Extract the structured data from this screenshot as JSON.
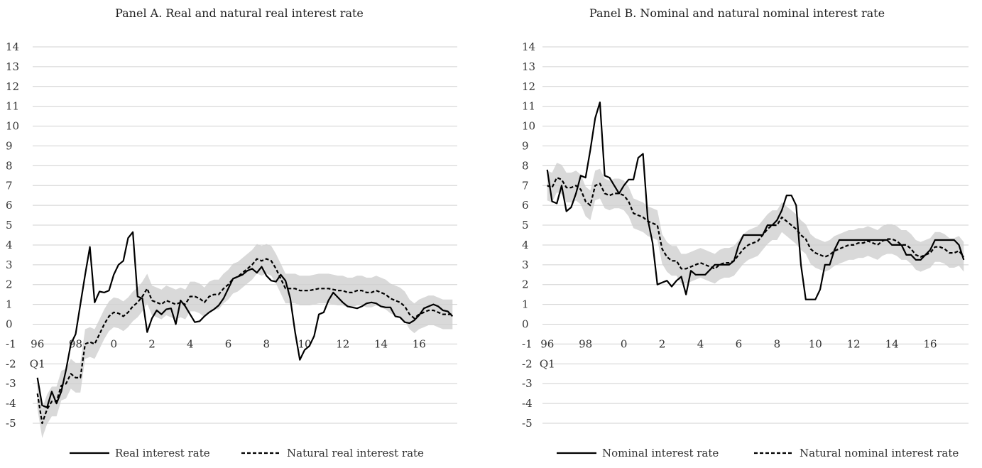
{
  "chart_data": [
    {
      "type": "line",
      "title": "Panel A. Real and natural real interest rate",
      "ylim": [
        -5,
        14
      ],
      "yticks": [
        14,
        13,
        12,
        11,
        10,
        9,
        8,
        7,
        6,
        5,
        4,
        3,
        2,
        1,
        0,
        -1,
        -2,
        -3,
        -4,
        -5
      ],
      "xticks": [
        {
          "label": "96",
          "x": 1996.0
        },
        {
          "label": "98",
          "x": 1998.0
        },
        {
          "label": "0",
          "x": 2000.0
        },
        {
          "label": "2",
          "x": 2002.0
        },
        {
          "label": "4",
          "x": 2004.0
        },
        {
          "label": "6",
          "x": 2006.0
        },
        {
          "label": "8",
          "x": 2008.0
        },
        {
          "label": "10",
          "x": 2010.0
        },
        {
          "label": "12",
          "x": 2012.0
        },
        {
          "label": "14",
          "x": 2014.0
        },
        {
          "label": "16",
          "x": 2016.0
        }
      ],
      "xsublabel": "Q1",
      "xlim": [
        1995.75,
        2018.0
      ],
      "grid": "horizontal",
      "legend": "bottom",
      "series": [
        {
          "name": "Real interest rate",
          "style": "solid",
          "color": "#000000",
          "x": [
            1996.0,
            1996.25,
            1996.5,
            1996.75,
            1997.0,
            1997.25,
            1997.5,
            1997.75,
            1998.0,
            1998.25,
            1998.5,
            1998.75,
            1999.0,
            1999.25,
            1999.5,
            1999.75,
            2000.0,
            2000.25,
            2000.5,
            2000.75,
            2001.0,
            2001.25,
            2001.5,
            2001.75,
            2002.0,
            2002.25,
            2002.5,
            2002.75,
            2003.0,
            2003.25,
            2003.5,
            2003.75,
            2004.0,
            2004.25,
            2004.5,
            2004.75,
            2005.0,
            2005.25,
            2005.5,
            2005.75,
            2006.0,
            2006.25,
            2006.5,
            2006.75,
            2007.0,
            2007.25,
            2007.5,
            2007.75,
            2008.0,
            2008.25,
            2008.5,
            2008.75,
            2009.0,
            2009.25,
            2009.5,
            2009.75,
            2010.0,
            2010.25,
            2010.5,
            2010.75,
            2011.0,
            2011.25,
            2011.5,
            2011.75,
            2012.0,
            2012.25,
            2012.5,
            2012.75,
            2013.0,
            2013.25,
            2013.5,
            2013.75,
            2014.0,
            2014.25,
            2014.5,
            2014.75,
            2015.0,
            2015.25,
            2015.5,
            2015.75,
            2016.0,
            2016.25,
            2016.5,
            2016.75,
            2017.0,
            2017.25,
            2017.5,
            2017.75
          ],
          "y": [
            -2.7,
            -4.1,
            -4.2,
            -3.4,
            -4.0,
            -3.4,
            -2.3,
            -1.0,
            -0.5,
            1.0,
            2.5,
            3.9,
            1.1,
            1.65,
            1.6,
            1.7,
            2.5,
            3.0,
            3.2,
            4.35,
            4.65,
            1.4,
            1.3,
            -0.4,
            0.3,
            0.7,
            0.5,
            0.75,
            0.8,
            0.0,
            1.2,
            0.9,
            0.5,
            0.1,
            0.15,
            0.4,
            0.6,
            0.75,
            0.95,
            1.3,
            1.8,
            2.3,
            2.4,
            2.5,
            2.7,
            2.8,
            2.6,
            2.9,
            2.45,
            2.2,
            2.15,
            2.5,
            2.2,
            1.3,
            -0.4,
            -1.8,
            -1.3,
            -1.1,
            -0.6,
            0.5,
            0.6,
            1.2,
            1.6,
            1.35,
            1.1,
            0.9,
            0.85,
            0.8,
            0.9,
            1.05,
            1.1,
            1.05,
            0.9,
            0.85,
            0.85,
            0.4,
            0.35,
            0.1,
            0.05,
            0.2,
            0.45,
            0.8,
            0.9,
            1.0,
            0.9,
            0.7,
            0.65,
            0.4
          ]
        },
        {
          "name": "Natural real interest rate",
          "style": "dashed",
          "color": "#000000",
          "x": [
            1996.0,
            1996.25,
            1996.5,
            1996.75,
            1997.0,
            1997.25,
            1997.5,
            1997.75,
            1998.0,
            1998.25,
            1998.5,
            1998.75,
            1999.0,
            1999.25,
            1999.5,
            1999.75,
            2000.0,
            2000.25,
            2000.5,
            2000.75,
            2001.0,
            2001.25,
            2001.5,
            2001.75,
            2002.0,
            2002.25,
            2002.5,
            2002.75,
            2003.0,
            2003.25,
            2003.5,
            2003.75,
            2004.0,
            2004.25,
            2004.5,
            2004.75,
            2005.0,
            2005.25,
            2005.5,
            2005.75,
            2006.0,
            2006.25,
            2006.5,
            2006.75,
            2007.0,
            2007.25,
            2007.5,
            2007.75,
            2008.0,
            2008.25,
            2008.5,
            2008.75,
            2009.0,
            2009.25,
            2009.5,
            2009.75,
            2010.0,
            2010.25,
            2010.5,
            2010.75,
            2011.0,
            2011.25,
            2011.5,
            2011.75,
            2012.0,
            2012.25,
            2012.5,
            2012.75,
            2013.0,
            2013.25,
            2013.5,
            2013.75,
            2014.0,
            2014.25,
            2014.5,
            2014.75,
            2015.0,
            2015.25,
            2015.5,
            2015.75,
            2016.0,
            2016.25,
            2016.5,
            2016.75,
            2017.0,
            2017.25,
            2017.5,
            2017.75
          ],
          "y": [
            -3.5,
            -5.0,
            -4.3,
            -3.9,
            -3.9,
            -3.1,
            -3.0,
            -2.5,
            -2.7,
            -2.7,
            -1.0,
            -0.9,
            -1.0,
            -0.5,
            0.0,
            0.4,
            0.6,
            0.55,
            0.4,
            0.6,
            0.9,
            1.1,
            1.4,
            1.8,
            1.2,
            1.1,
            1.0,
            1.2,
            1.1,
            1.0,
            1.1,
            1.0,
            1.4,
            1.4,
            1.3,
            1.1,
            1.4,
            1.5,
            1.5,
            1.8,
            2.0,
            2.3,
            2.4,
            2.6,
            2.8,
            3.0,
            3.3,
            3.2,
            3.3,
            3.2,
            2.8,
            2.3,
            1.8,
            1.8,
            1.8,
            1.7,
            1.7,
            1.7,
            1.75,
            1.8,
            1.8,
            1.8,
            1.75,
            1.7,
            1.7,
            1.6,
            1.6,
            1.7,
            1.7,
            1.6,
            1.6,
            1.7,
            1.6,
            1.5,
            1.3,
            1.2,
            1.1,
            0.9,
            0.5,
            0.3,
            0.5,
            0.6,
            0.7,
            0.7,
            0.6,
            0.5,
            0.5,
            0.5
          ]
        }
      ],
      "band_fill": "#d9d9d9"
    },
    {
      "type": "line",
      "title": "Panel B. Nominal and natural nominal interest rate",
      "ylim": [
        -5,
        14
      ],
      "yticks": [
        14,
        13,
        12,
        11,
        10,
        9,
        8,
        7,
        6,
        5,
        4,
        3,
        2,
        1,
        0,
        -1,
        -2,
        -3,
        -4,
        -5
      ],
      "xticks": [
        {
          "label": "96",
          "x": 1996.0
        },
        {
          "label": "98",
          "x": 1998.0
        },
        {
          "label": "0",
          "x": 2000.0
        },
        {
          "label": "2",
          "x": 2002.0
        },
        {
          "label": "4",
          "x": 2004.0
        },
        {
          "label": "6",
          "x": 2006.0
        },
        {
          "label": "8",
          "x": 2008.0
        },
        {
          "label": "10",
          "x": 2010.0
        },
        {
          "label": "12",
          "x": 2012.0
        },
        {
          "label": "14",
          "x": 2014.0
        },
        {
          "label": "16",
          "x": 2016.0
        }
      ],
      "xsublabel": "Q1",
      "xlim": [
        1995.75,
        2018.0
      ],
      "grid": "horizontal",
      "legend": "bottom",
      "series": [
        {
          "name": "Nominal interest rate",
          "style": "solid",
          "color": "#000000",
          "x": [
            1996.0,
            1996.25,
            1996.5,
            1996.75,
            1997.0,
            1997.25,
            1997.5,
            1997.75,
            1998.0,
            1998.25,
            1998.5,
            1998.75,
            1999.0,
            1999.25,
            1999.5,
            1999.75,
            2000.0,
            2000.25,
            2000.5,
            2000.75,
            2001.0,
            2001.25,
            2001.5,
            2001.75,
            2002.0,
            2002.25,
            2002.5,
            2002.75,
            2003.0,
            2003.25,
            2003.5,
            2003.75,
            2004.0,
            2004.25,
            2004.5,
            2004.75,
            2005.0,
            2005.25,
            2005.5,
            2005.75,
            2006.0,
            2006.25,
            2006.5,
            2006.75,
            2007.0,
            2007.25,
            2007.5,
            2007.75,
            2008.0,
            2008.25,
            2008.5,
            2008.75,
            2009.0,
            2009.25,
            2009.5,
            2009.75,
            2010.0,
            2010.25,
            2010.5,
            2010.75,
            2011.0,
            2011.25,
            2011.5,
            2011.75,
            2012.0,
            2012.25,
            2012.5,
            2012.75,
            2013.0,
            2013.25,
            2013.5,
            2013.75,
            2014.0,
            2014.25,
            2014.5,
            2014.75,
            2015.0,
            2015.25,
            2015.5,
            2015.75,
            2016.0,
            2016.25,
            2016.5,
            2016.75,
            2017.0,
            2017.25,
            2017.5,
            2017.75
          ],
          "y": [
            7.8,
            6.2,
            6.1,
            7.0,
            5.7,
            5.9,
            6.6,
            7.5,
            7.4,
            8.8,
            10.4,
            11.2,
            7.5,
            7.4,
            7.0,
            6.6,
            7.0,
            7.3,
            7.3,
            8.4,
            8.6,
            5.3,
            4.1,
            2.0,
            2.1,
            2.2,
            1.9,
            2.2,
            2.4,
            1.5,
            2.7,
            2.5,
            2.5,
            2.5,
            2.75,
            3.0,
            3.0,
            3.0,
            3.0,
            3.2,
            4.0,
            4.5,
            4.5,
            4.5,
            4.5,
            4.5,
            5.0,
            5.0,
            5.25,
            5.75,
            6.5,
            6.5,
            6.0,
            3.0,
            1.25,
            1.25,
            1.25,
            1.75,
            3.0,
            3.0,
            3.75,
            4.25,
            4.25,
            4.25,
            4.25,
            4.25,
            4.25,
            4.25,
            4.25,
            4.25,
            4.25,
            4.25,
            4.0,
            4.0,
            4.0,
            3.5,
            3.5,
            3.25,
            3.25,
            3.5,
            3.75,
            4.25,
            4.25,
            4.25,
            4.25,
            4.25,
            4.0,
            3.25
          ]
        },
        {
          "name": "Natural nominal interest rate",
          "style": "dashed",
          "color": "#000000",
          "x": [
            1996.0,
            1996.25,
            1996.5,
            1996.75,
            1997.0,
            1997.25,
            1997.5,
            1997.75,
            1998.0,
            1998.25,
            1998.5,
            1998.75,
            1999.0,
            1999.25,
            1999.5,
            1999.75,
            2000.0,
            2000.25,
            2000.5,
            2000.75,
            2001.0,
            2001.25,
            2001.5,
            2001.75,
            2002.0,
            2002.25,
            2002.5,
            2002.75,
            2003.0,
            2003.25,
            2003.5,
            2003.75,
            2004.0,
            2004.25,
            2004.5,
            2004.75,
            2005.0,
            2005.25,
            2005.5,
            2005.75,
            2006.0,
            2006.25,
            2006.5,
            2006.75,
            2007.0,
            2007.25,
            2007.5,
            2007.75,
            2008.0,
            2008.25,
            2008.5,
            2008.75,
            2009.0,
            2009.25,
            2009.5,
            2009.75,
            2010.0,
            2010.25,
            2010.5,
            2010.75,
            2011.0,
            2011.25,
            2011.5,
            2011.75,
            2012.0,
            2012.25,
            2012.5,
            2012.75,
            2013.0,
            2013.25,
            2013.5,
            2013.75,
            2014.0,
            2014.25,
            2014.5,
            2014.75,
            2015.0,
            2015.25,
            2015.5,
            2015.75,
            2016.0,
            2016.25,
            2016.5,
            2016.75,
            2017.0,
            2017.25,
            2017.5,
            2017.75
          ],
          "y": [
            7.0,
            6.9,
            7.4,
            7.3,
            6.9,
            6.9,
            7.0,
            6.8,
            6.2,
            6.0,
            7.0,
            7.1,
            6.6,
            6.5,
            6.6,
            6.6,
            6.5,
            6.2,
            5.6,
            5.5,
            5.4,
            5.2,
            5.1,
            5.0,
            3.8,
            3.4,
            3.2,
            3.2,
            2.8,
            2.8,
            2.9,
            3.0,
            3.1,
            3.0,
            2.9,
            2.8,
            3.0,
            3.1,
            3.1,
            3.2,
            3.5,
            3.8,
            4.0,
            4.1,
            4.2,
            4.5,
            4.8,
            5.0,
            5.0,
            5.4,
            5.2,
            5.0,
            4.8,
            4.5,
            4.3,
            3.8,
            3.6,
            3.5,
            3.4,
            3.5,
            3.7,
            3.8,
            3.9,
            4.0,
            4.0,
            4.1,
            4.1,
            4.2,
            4.1,
            4.0,
            4.2,
            4.3,
            4.3,
            4.2,
            4.0,
            4.0,
            3.8,
            3.5,
            3.4,
            3.5,
            3.6,
            3.9,
            3.9,
            3.8,
            3.6,
            3.6,
            3.7,
            3.4
          ]
        }
      ],
      "band_fill": "#d9d9d9"
    }
  ]
}
